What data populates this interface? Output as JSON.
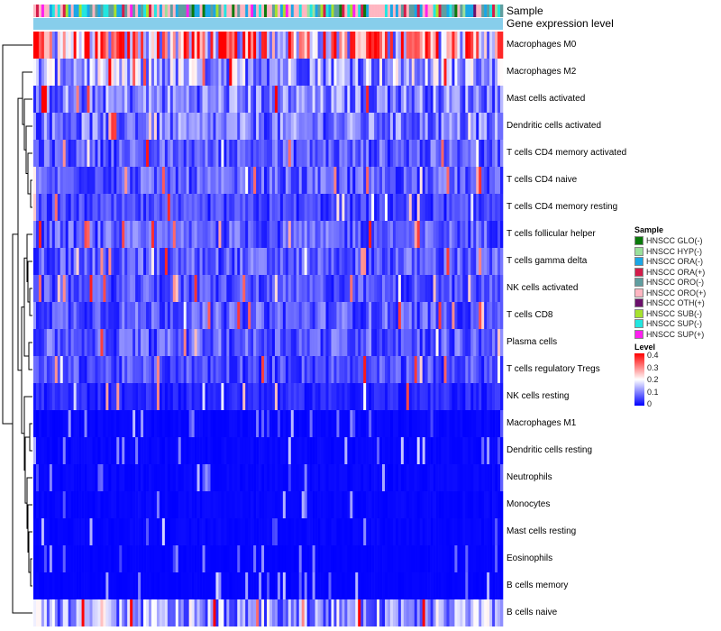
{
  "chart_data": {
    "type": "heatmap",
    "annotation_labels": [
      "Sample",
      "Gene expression level"
    ],
    "rows": [
      "Macrophages M0",
      "Macrophages M2",
      "Mast cells activated",
      "Dendritic cells activated",
      "T cells CD4 memory activated",
      "T cells CD4 naive",
      "T cells CD4 memory resting",
      "T cells follicular helper",
      "T cells gamma delta",
      "NK cells activated",
      "T cells CD8",
      "Plasma cells",
      "T cells regulatory  Tregs",
      "NK cells resting",
      "Macrophages M1",
      "Dendritic cells resting",
      "Neutrophils",
      "Monocytes",
      "Mast cells resting",
      "Eosinophils",
      "B cells memory",
      "B cells naive"
    ],
    "row_mean_levels": [
      0.24,
      0.13,
      0.1,
      0.09,
      0.07,
      0.07,
      0.05,
      0.07,
      0.07,
      0.06,
      0.07,
      0.07,
      0.06,
      0.03,
      0.01,
      0.01,
      0.01,
      0.01,
      0.01,
      0.005,
      0.005,
      0.12
    ],
    "num_samples": 175,
    "sample_legend": {
      "title": "Sample",
      "items": [
        {
          "label": "HNSCC GLO(-)",
          "color": "#0b7a0b"
        },
        {
          "label": "HNSCC HYP(-)",
          "color": "#9be09b"
        },
        {
          "label": "HNSCC ORA(-)",
          "color": "#1aa7e6"
        },
        {
          "label": "HNSCC ORA(+)",
          "color": "#d41c4a"
        },
        {
          "label": "HNSCC ORO(-)",
          "color": "#5f9ea0"
        },
        {
          "label": "HNSCC ORO(+)",
          "color": "#ffb6c1"
        },
        {
          "label": "HNSCC OTH(+)",
          "color": "#6b0f6b"
        },
        {
          "label": "HNSCC SUB(-)",
          "color": "#a6e22e"
        },
        {
          "label": "HNSCC SUP(-)",
          "color": "#22e6e0"
        },
        {
          "label": "HNSCC SUP(+)",
          "color": "#ff1ff0"
        }
      ]
    },
    "level_legend": {
      "title": "Level",
      "ticks": [
        "0.4",
        "0.3",
        "0.2",
        "0.1",
        "0"
      ],
      "colors": [
        "#0000ff",
        "#ffffff",
        "#ff0000"
      ],
      "range": [
        0,
        0.4
      ]
    },
    "gene_expression_bar_color": "#87ceeb",
    "dendrogram": "rows clustered; tree drawn on left"
  }
}
